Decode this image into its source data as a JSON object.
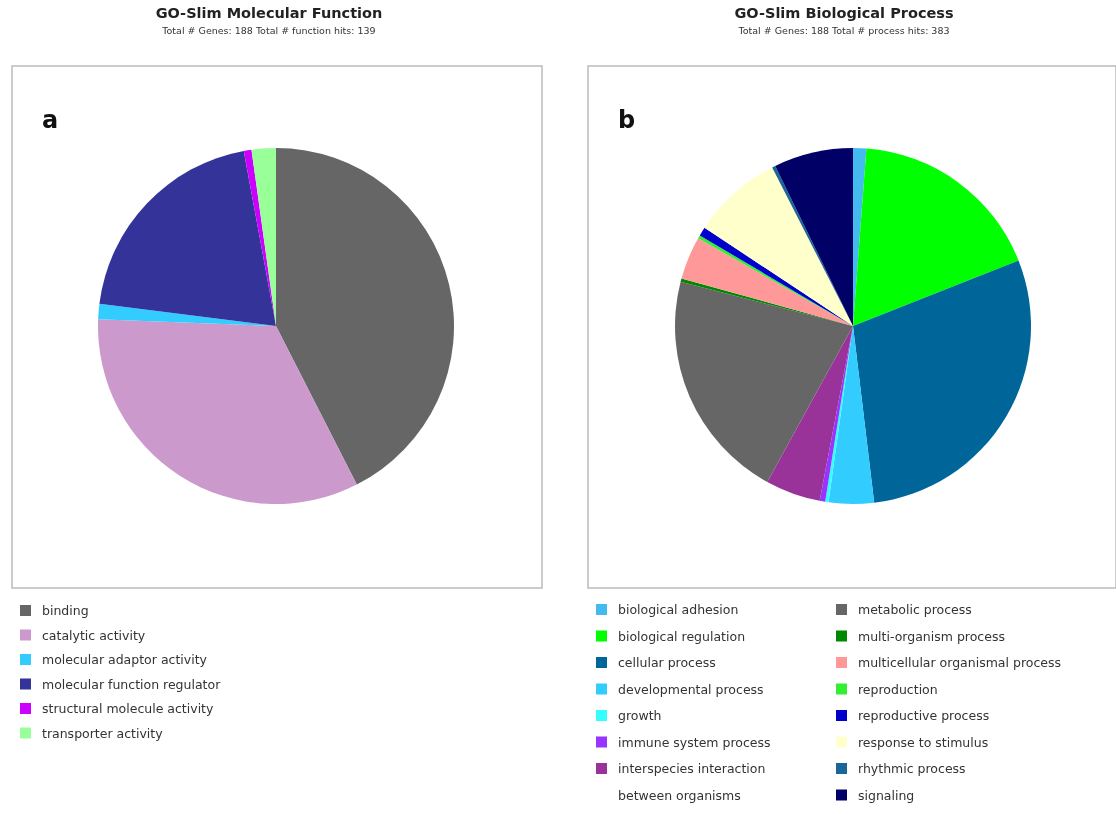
{
  "chart_data": [
    {
      "type": "pie",
      "title": "GO-Slim Molecular Function",
      "subtitle": "Total # Genes: 188    Total # function hits: 139",
      "annotations": [
        "a"
      ],
      "legend": "bottom",
      "categories": [
        "binding",
        "catalytic activity",
        "molecular adaptor activity",
        "molecular function regulator",
        "structural molecule activity",
        "transporter activity"
      ],
      "values": [
        42.5,
        33.1,
        1.4,
        20.1,
        0.7,
        2.2
      ],
      "colors": [
        "#666666",
        "#cc99cc",
        "#33ccff",
        "#333399",
        "#cc00ff",
        "#99ff99"
      ]
    },
    {
      "type": "pie",
      "title": "GO-Slim Biological Process",
      "subtitle": "Total # Genes: 188    Total # process hits: 383",
      "annotations": [
        "b"
      ],
      "legend": "bottom",
      "categories": [
        "biological adhesion",
        "biological regulation",
        "cellular process",
        "developmental process",
        "growth",
        "immune system process",
        "interspecies interaction between organisms",
        "metabolic process",
        "multi-organism process",
        "multicellular organismal process",
        "reproduction",
        "reproductive process",
        "response to stimulus",
        "rhythmic process",
        "signaling"
      ],
      "values": [
        1.2,
        17.8,
        29.1,
        4.1,
        0.3,
        0.5,
        5.0,
        21.0,
        0.3,
        3.9,
        0.3,
        0.8,
        8.2,
        0.3,
        7.2
      ],
      "colors": [
        "#44bbee",
        "#00ff00",
        "#006699",
        "#33ccff",
        "#33ffff",
        "#9933ff",
        "#993399",
        "#666666",
        "#008800",
        "#ff9999",
        "#33ee33",
        "#0000cc",
        "#ffffcc",
        "#1a6699",
        "#000066"
      ]
    }
  ]
}
